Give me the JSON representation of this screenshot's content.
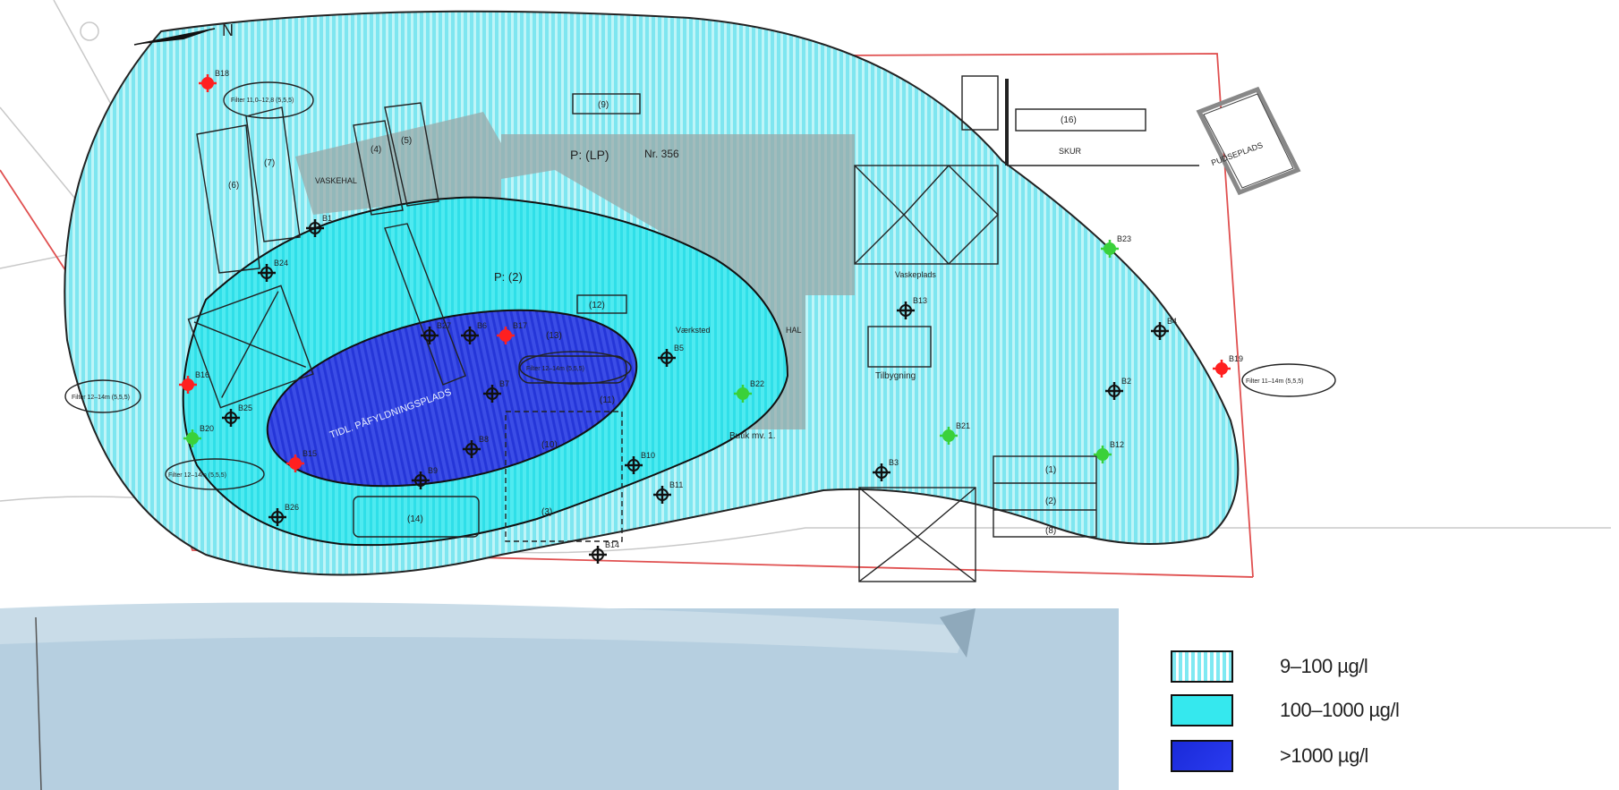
{
  "map": {
    "north_label": "N",
    "building_labels": {
      "b9": "(9)",
      "b16": "(16)",
      "skur": "SKUR",
      "pudsplads": "PUDSEPLADS",
      "vaskehal": "VASKEHAL",
      "b4": "(4)",
      "b5": "(5)",
      "b6": "(6)",
      "b7": "(7)",
      "b12": "(12)",
      "b13": "(13)",
      "b10": "(10)",
      "b11": "(11)",
      "b14": "(14)",
      "b3": "(3)",
      "b1": "(1)",
      "b2": "(2)",
      "b8": "(8)",
      "b1b": "(1)",
      "p_lp": "P: (LP)",
      "nr356": "Nr. 356",
      "p2": "P: (2)",
      "vaskeplads": "Vaskeplads",
      "tilbygning": "Tilbygning",
      "hal": "HAL",
      "vaerksted": "Værksted",
      "butik": "Butik mv. 1.",
      "tidl_pladsomraade": "TIDL. PÅFYLDNINGSPLADS"
    },
    "well_labels": [
      "B18",
      "B19",
      "B17",
      "B16",
      "B15",
      "B20",
      "B23",
      "B22",
      "B21",
      "B12",
      "B13",
      "B4",
      "B5",
      "B6",
      "B7",
      "B8",
      "B9",
      "B10",
      "B11",
      "B14",
      "B3",
      "B2",
      "B1",
      "B24",
      "B25",
      "B26",
      "B27"
    ],
    "callouts": [
      "Filter 11,0–12,8 (5,5,5)",
      "Filter 12–14m (5,5,5)",
      "Filter 12–14m (5,5,5)",
      "Filter 12–14m (5,5,5)",
      "Filter 11–14m (5,5,5)"
    ]
  },
  "legend": {
    "items": [
      {
        "label": "9–100 µg/l",
        "style": "hatched-light-cyan"
      },
      {
        "label": "100–1000 µg/l",
        "style": "solid-cyan"
      },
      {
        "label": ">1000 µg/l",
        "style": "solid-blue"
      }
    ]
  },
  "colors": {
    "low": "#8fecf3",
    "mid": "#35e8ee",
    "high": "#1e2fe0",
    "grey_building": "#9aa8a8",
    "property_line": "#e03b3b",
    "bottom_band": "#b6cfe0"
  }
}
